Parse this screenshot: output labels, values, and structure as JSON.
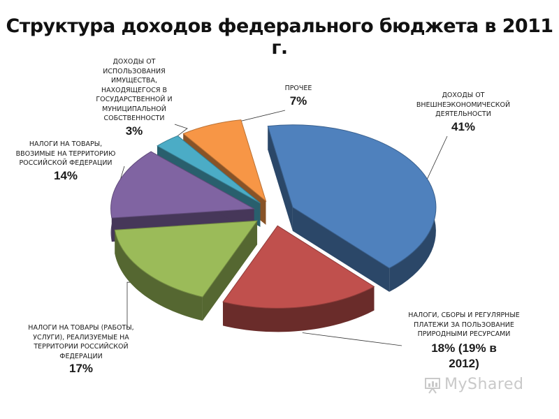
{
  "chart_data": {
    "type": "pie",
    "title": "Структура доходов федерального бюджета в 2011 г.",
    "slices": [
      {
        "label": "ДОХОДЫ ОТ ВНЕШНЕЭКОНОМИЧЕСКОЙ ДЕЯТЕЛЬНОСТИ",
        "value": 41,
        "value_label": "41%",
        "color": "#4f81bd"
      },
      {
        "label": "НАЛОГИ, СБОРЫ И РЕГУЛЯРНЫЕ ПЛАТЕЖИ ЗА ПОЛЬЗОВАНИЕ ПРИРОДНЫМИ РЕСУРСАМИ",
        "value": 18,
        "value_label": "18% (19% в 2012)",
        "color": "#c0504d"
      },
      {
        "label": "НАЛОГИ НА ТОВАРЫ (РАБОТЫ, УСЛУГИ), РЕАЛИЗУЕМЫЕ НА ТЕРРИТОРИИ РОССИЙСКОЙ ФЕДЕРАЦИИ",
        "value": 17,
        "value_label": "17%",
        "color": "#9bbb59"
      },
      {
        "label": "НАЛОГИ НА ТОВАРЫ, ВВОЗИМЫЕ НА ТЕРРИТОРИЮ РОССИЙСКОЙ ФЕДЕРАЦИИ",
        "value": 14,
        "value_label": "14%",
        "color": "#8064a2"
      },
      {
        "label": "ДОХОДЫ ОТ ИСПОЛЬЗОВАНИЯ ИМУЩЕСТВА, НАХОДЯЩЕГОСЯ В ГОСУДАРСТВЕННОЙ И МУНИЦИПАЛЬНОЙ СОБСТВЕННОСТИ",
        "value": 3,
        "value_label": "3%",
        "color": "#4bacc6"
      },
      {
        "label": "Прочее",
        "value": 7,
        "value_label": "7%",
        "color": "#f79646"
      }
    ]
  },
  "watermark": "MyShared"
}
